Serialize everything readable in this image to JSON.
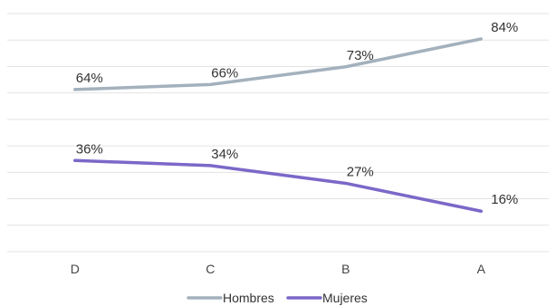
{
  "chart_data": {
    "type": "line",
    "categories": [
      "D",
      "C",
      "B",
      "A"
    ],
    "series": [
      {
        "name": "Hombres",
        "values": [
          64,
          66,
          73,
          84
        ],
        "labels": [
          "64%",
          "66%",
          "73%",
          "84%"
        ],
        "color": "#a3b1bd"
      },
      {
        "name": "Mujeres",
        "values": [
          36,
          34,
          27,
          16
        ],
        "labels": [
          "36%",
          "34%",
          "27%",
          "16%"
        ],
        "color": "#7b68c8"
      }
    ],
    "ylim": [
      0,
      94
    ],
    "grid": true,
    "legend_position": "bottom"
  }
}
